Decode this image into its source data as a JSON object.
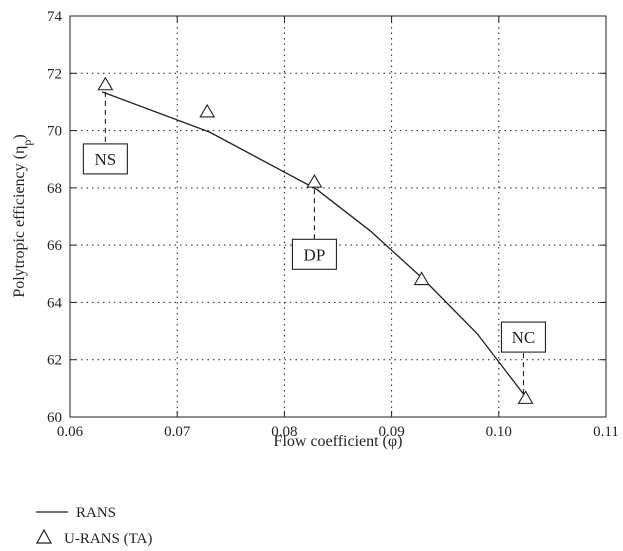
{
  "chart_data": {
    "type": "line",
    "title": "",
    "xlabel": "Flow coefficient (φ)",
    "ylabel": "Polytropic efficiency (η",
    "ylabel_subscript": "p",
    "ylabel_close": ")",
    "xlim": [
      0.06,
      0.11
    ],
    "ylim": [
      60,
      74
    ],
    "xticks": [
      "0.06",
      "0.07",
      "0.08",
      "0.09",
      "0.10",
      "0.11"
    ],
    "yticks": [
      "60",
      "62",
      "64",
      "66",
      "68",
      "70",
      "72",
      "74"
    ],
    "grid": true,
    "series": [
      {
        "name": "RANS",
        "marker": "none",
        "color": "#231f20",
        "x": [
          0.063,
          0.073,
          0.083,
          0.088,
          0.093,
          0.098,
          0.1023
        ],
        "y": [
          71.35,
          69.95,
          67.95,
          66.5,
          64.8,
          62.9,
          60.8
        ]
      },
      {
        "name": "U-RANS (TA)",
        "marker": "triangle",
        "color": "#231f20",
        "x": [
          0.0633,
          0.0728,
          0.0828,
          0.0928,
          0.1025
        ],
        "y": [
          71.6,
          70.65,
          68.2,
          64.8,
          60.65
        ]
      }
    ],
    "annotations": [
      {
        "id": "ns",
        "text": "NS",
        "x": 0.0633,
        "y": 71.35
      },
      {
        "id": "dp",
        "text": "DP",
        "x": 0.0828,
        "y": 67.95
      },
      {
        "id": "nc",
        "text": "NC",
        "x": 0.1023,
        "y": 60.8
      }
    ],
    "legend_position": "bottom-left"
  }
}
